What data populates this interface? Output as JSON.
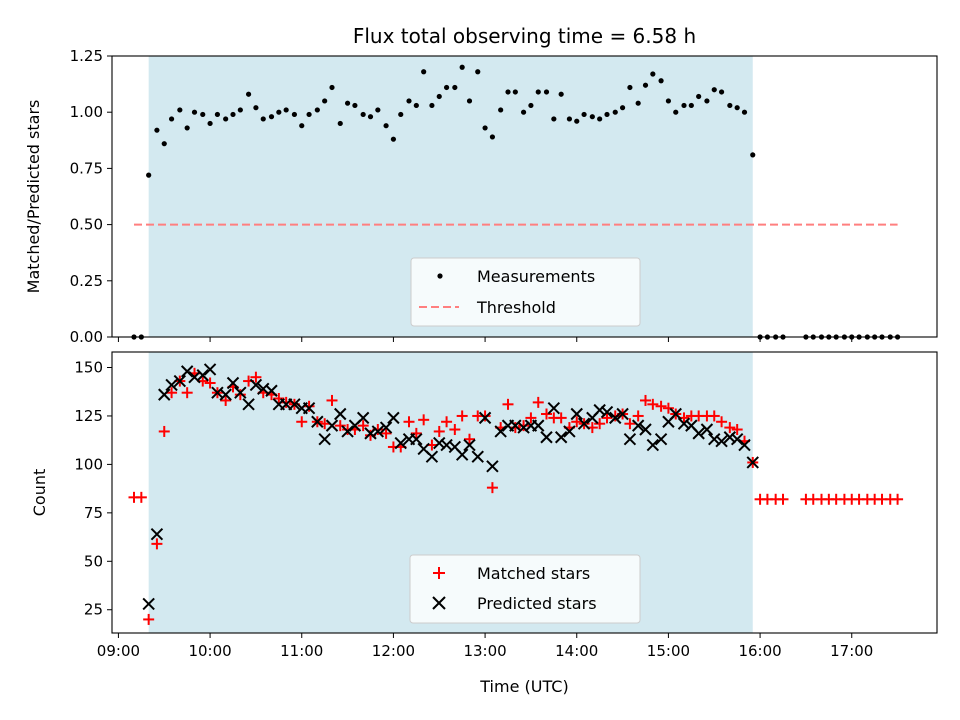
{
  "chart_data": [
    {
      "type": "scatter",
      "title": "Flux total observing time = 6.58 h",
      "xlabel": "",
      "ylabel": "Matched/Predicted stars",
      "ylim": [
        0,
        1.25
      ],
      "yticks": [
        "0.00",
        "0.25",
        "0.50",
        "0.75",
        "1.00",
        "1.25"
      ],
      "xlim_hours": [
        8.93,
        17.93
      ],
      "shaded_span_hours": [
        9.33,
        15.92
      ],
      "shade_color": "#d3e9f0",
      "threshold": {
        "label": "Threshold",
        "value": 0.5,
        "x_range_hours": [
          9.17,
          17.5
        ],
        "color": "#ff7f7f"
      },
      "legend": {
        "entries": [
          "Measurements",
          "Threshold"
        ],
        "position": "lower center"
      },
      "series": [
        {
          "name": "Measurements",
          "color": "#000000",
          "x_hours": [
            9.17,
            9.25,
            9.33,
            9.42,
            9.5,
            9.58,
            9.67,
            9.75,
            9.83,
            9.92,
            10.0,
            10.08,
            10.17,
            10.25,
            10.33,
            10.42,
            10.5,
            10.58,
            10.67,
            10.75,
            10.83,
            10.92,
            11.0,
            11.08,
            11.17,
            11.25,
            11.33,
            11.42,
            11.5,
            11.58,
            11.67,
            11.75,
            11.83,
            11.92,
            12.0,
            12.08,
            12.17,
            12.25,
            12.33,
            12.42,
            12.5,
            12.58,
            12.67,
            12.75,
            12.83,
            12.92,
            13.0,
            13.08,
            13.17,
            13.25,
            13.33,
            13.42,
            13.5,
            13.58,
            13.67,
            13.75,
            13.83,
            13.92,
            14.0,
            14.08,
            14.17,
            14.25,
            14.33,
            14.42,
            14.5,
            14.58,
            14.67,
            14.75,
            14.83,
            14.92,
            15.0,
            15.08,
            15.17,
            15.25,
            15.33,
            15.42,
            15.5,
            15.58,
            15.67,
            15.75,
            15.83,
            15.92,
            16.0,
            16.08,
            16.17,
            16.25,
            16.5,
            16.58,
            16.67,
            16.75,
            16.83,
            16.92,
            17.0,
            17.08,
            17.17,
            17.25,
            17.33,
            17.42,
            17.5
          ],
          "y": [
            0,
            0,
            0.72,
            0.92,
            0.86,
            0.97,
            1.01,
            0.93,
            1.0,
            0.99,
            0.95,
            0.99,
            0.97,
            0.99,
            1.01,
            1.08,
            1.02,
            0.97,
            0.98,
            1.0,
            1.01,
            0.99,
            0.94,
            0.99,
            1.01,
            1.05,
            1.11,
            0.95,
            1.04,
            1.03,
            0.99,
            0.98,
            1.01,
            0.94,
            0.88,
            0.99,
            1.05,
            1.03,
            1.18,
            1.03,
            1.07,
            1.11,
            1.11,
            1.2,
            1.05,
            1.18,
            0.93,
            0.89,
            1.01,
            1.09,
            1.09,
            1.0,
            1.03,
            1.09,
            1.09,
            0.97,
            1.08,
            0.97,
            0.96,
            0.99,
            0.98,
            0.97,
            0.99,
            1.0,
            1.02,
            1.11,
            1.04,
            1.12,
            1.17,
            1.14,
            1.05,
            1.0,
            1.03,
            1.03,
            1.07,
            1.05,
            1.1,
            1.09,
            1.03,
            1.02,
            1.0,
            0.81,
            0,
            0,
            0,
            0,
            0,
            0,
            0,
            0,
            0,
            0,
            0,
            0,
            0,
            0,
            0,
            0,
            0
          ]
        }
      ]
    },
    {
      "type": "scatter",
      "title": "",
      "xlabel": "Time (UTC)",
      "ylabel": "Count",
      "ylim": [
        13,
        158
      ],
      "yticks": [
        "25",
        "50",
        "75",
        "100",
        "125",
        "150"
      ],
      "xticks": [
        "09:00",
        "10:00",
        "11:00",
        "12:00",
        "13:00",
        "14:00",
        "15:00",
        "16:00",
        "17:00"
      ],
      "xlim_hours": [
        8.93,
        17.93
      ],
      "shaded_span_hours": [
        9.33,
        15.92
      ],
      "shade_color": "#d3e9f0",
      "legend": {
        "entries": [
          "Matched stars",
          "Predicted stars"
        ],
        "position": "lower center"
      },
      "series": [
        {
          "name": "Matched stars",
          "marker": "+",
          "color": "#ff0000",
          "x_hours": [
            9.17,
            9.25,
            9.33,
            9.42,
            9.5,
            9.58,
            9.67,
            9.75,
            9.83,
            9.92,
            10.0,
            10.08,
            10.17,
            10.25,
            10.33,
            10.42,
            10.5,
            10.58,
            10.67,
            10.75,
            10.83,
            10.92,
            11.0,
            11.08,
            11.17,
            11.25,
            11.33,
            11.42,
            11.5,
            11.58,
            11.67,
            11.75,
            11.83,
            11.92,
            12.0,
            12.08,
            12.17,
            12.25,
            12.33,
            12.42,
            12.5,
            12.58,
            12.67,
            12.75,
            12.83,
            12.92,
            13.0,
            13.08,
            13.17,
            13.25,
            13.33,
            13.42,
            13.5,
            13.58,
            13.67,
            13.75,
            13.83,
            13.92,
            14.0,
            14.08,
            14.17,
            14.25,
            14.33,
            14.42,
            14.5,
            14.58,
            14.67,
            14.75,
            14.83,
            14.92,
            15.0,
            15.08,
            15.17,
            15.25,
            15.33,
            15.42,
            15.5,
            15.58,
            15.67,
            15.75,
            15.83,
            15.92,
            16.0,
            16.08,
            16.17,
            16.25,
            16.5,
            16.58,
            16.67,
            16.75,
            16.83,
            16.92,
            17.0,
            17.08,
            17.17,
            17.25,
            17.33,
            17.42,
            17.5
          ],
          "y": [
            83,
            83,
            20,
            59,
            117,
            137,
            143,
            137,
            147,
            143,
            142,
            137,
            133,
            140,
            136,
            143,
            145,
            137,
            136,
            134,
            132,
            131,
            122,
            130,
            122,
            121,
            133,
            120,
            118,
            118,
            120,
            115,
            118,
            116,
            109,
            109,
            122,
            116,
            123,
            110,
            117,
            122,
            118,
            125,
            113,
            125,
            125,
            88,
            119,
            131,
            119,
            120,
            124,
            132,
            126,
            124,
            124,
            119,
            122,
            121,
            119,
            121,
            124,
            125,
            126,
            121,
            125,
            133,
            131,
            130,
            129,
            126,
            124,
            125,
            125,
            125,
            125,
            122,
            119,
            118,
            112,
            101,
            82,
            82,
            82,
            82,
            82,
            82,
            82,
            82,
            82,
            82,
            82,
            82,
            82,
            82,
            82,
            82,
            82
          ]
        },
        {
          "name": "Predicted stars",
          "marker": "x",
          "color": "#000000",
          "x_hours": [
            9.33,
            9.42,
            9.5,
            9.58,
            9.67,
            9.75,
            9.83,
            9.92,
            10.0,
            10.08,
            10.17,
            10.25,
            10.33,
            10.42,
            10.5,
            10.58,
            10.67,
            10.75,
            10.83,
            10.92,
            11.0,
            11.08,
            11.17,
            11.25,
            11.33,
            11.42,
            11.5,
            11.58,
            11.67,
            11.75,
            11.83,
            11.92,
            12.0,
            12.08,
            12.17,
            12.25,
            12.33,
            12.42,
            12.5,
            12.58,
            12.67,
            12.75,
            12.83,
            12.92,
            13.0,
            13.08,
            13.17,
            13.25,
            13.33,
            13.42,
            13.5,
            13.58,
            13.67,
            13.75,
            13.83,
            13.92,
            14.0,
            14.08,
            14.17,
            14.25,
            14.33,
            14.42,
            14.5,
            14.58,
            14.67,
            14.75,
            14.83,
            14.92,
            15.0,
            15.08,
            15.17,
            15.25,
            15.33,
            15.42,
            15.5,
            15.58,
            15.67,
            15.75,
            15.83,
            15.92
          ],
          "y": [
            28,
            64,
            136,
            141,
            143,
            148,
            145,
            146,
            149,
            137,
            136,
            142,
            137,
            131,
            141,
            139,
            138,
            131,
            131,
            131,
            129,
            129,
            122,
            113,
            120,
            126,
            117,
            120,
            124,
            116,
            117,
            119,
            124,
            111,
            113,
            113,
            108,
            104,
            111,
            110,
            109,
            105,
            110,
            104,
            124,
            99,
            117,
            120,
            120,
            119,
            120,
            120,
            114,
            129,
            114,
            117,
            126,
            121,
            124,
            128,
            127,
            124,
            126,
            113,
            120,
            118,
            110,
            113,
            122,
            126,
            121,
            120,
            116,
            118,
            113,
            112,
            114,
            113,
            110,
            101
          ]
        }
      ]
    }
  ]
}
